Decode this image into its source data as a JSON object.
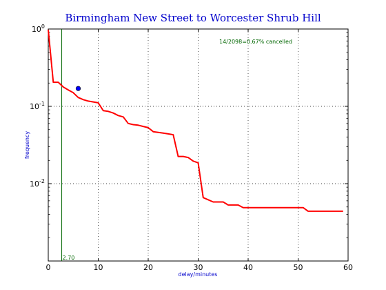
{
  "chart_data": {
    "type": "line",
    "title": "Birmingham New Street to Worcester Shrub Hill",
    "xlabel": "delay/minutes",
    "ylabel": "frequency",
    "xlim": [
      0,
      60
    ],
    "ylim": [
      0.001,
      1
    ],
    "yscale": "log",
    "grid": true,
    "x_ticks": [
      "0",
      "10",
      "20",
      "30",
      "40",
      "50",
      "60"
    ],
    "y_ticks": [
      {
        "value": 1,
        "base": "10",
        "exp": "0"
      },
      {
        "value": 0.1,
        "base": "10",
        "exp": "-1"
      },
      {
        "value": 0.01,
        "base": "10",
        "exp": "-2"
      }
    ],
    "series": [
      {
        "color": "#ff0000",
        "x": [
          0,
          1,
          2,
          3,
          4,
          5,
          6,
          7,
          8,
          9,
          10,
          11,
          12,
          13,
          14,
          15,
          16,
          17,
          18,
          19,
          20,
          21,
          22,
          23,
          24,
          25,
          26,
          27,
          28,
          29,
          30,
          31,
          32,
          33,
          34,
          35,
          36,
          37,
          38,
          39,
          40,
          41,
          42,
          43,
          44,
          45,
          46,
          47,
          48,
          49,
          50,
          51,
          52,
          53,
          54,
          55,
          56,
          57,
          58,
          59
        ],
        "y": [
          0.98,
          0.205,
          0.205,
          0.178,
          0.163,
          0.15,
          0.13,
          0.122,
          0.117,
          0.114,
          0.111,
          0.088,
          0.086,
          0.082,
          0.076,
          0.073,
          0.06,
          0.058,
          0.057,
          0.055,
          0.053,
          0.047,
          0.046,
          0.045,
          0.044,
          0.043,
          0.0225,
          0.0225,
          0.0218,
          0.0196,
          0.0186,
          0.0066,
          0.0062,
          0.0058,
          0.0058,
          0.0058,
          0.0053,
          0.0053,
          0.0053,
          0.0049,
          0.0049,
          0.0049,
          0.0049,
          0.0049,
          0.0049,
          0.0049,
          0.0049,
          0.0049,
          0.0049,
          0.0049,
          0.0049,
          0.0049,
          0.0044,
          0.0044,
          0.0044,
          0.0044,
          0.0044,
          0.0044,
          0.0044,
          0.0044
        ]
      }
    ],
    "point": {
      "x": 6,
      "y": 0.17,
      "color": "#0000ff"
    },
    "vline": {
      "x": 2.7,
      "label": "2.70",
      "color": "#006600"
    },
    "annotation": {
      "text": "14/2098=0.67% cancelled",
      "color": "#006600"
    }
  }
}
